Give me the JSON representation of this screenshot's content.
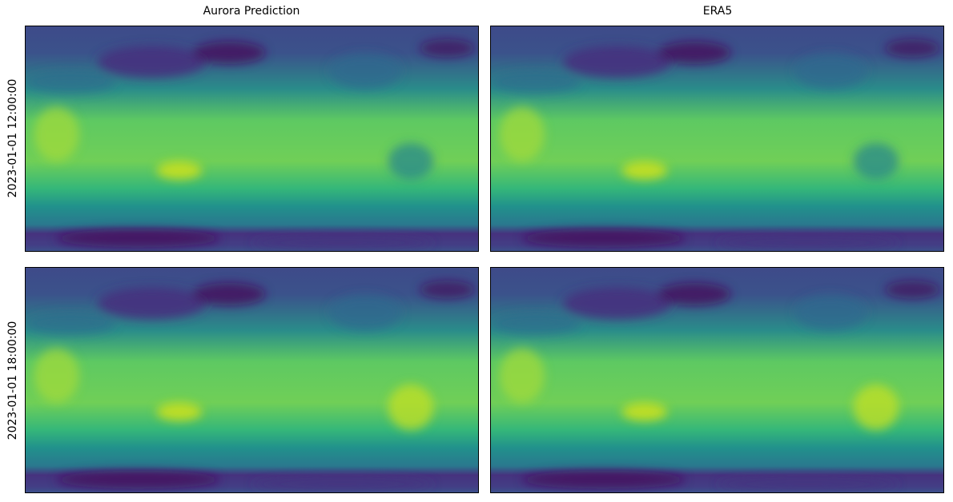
{
  "columns": [
    "Aurora Prediction",
    "ERA5"
  ],
  "rows": [
    "2023-01-01 12:00:00",
    "2023-01-01 18:00:00"
  ]
}
